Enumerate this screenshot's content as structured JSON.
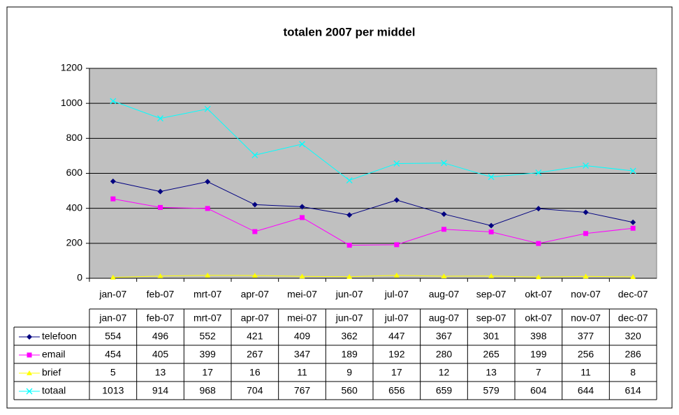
{
  "chart_data": {
    "type": "line",
    "title": "totalen 2007 per middel",
    "categories": [
      "jan-07",
      "feb-07",
      "mrt-07",
      "apr-07",
      "mei-07",
      "jun-07",
      "jul-07",
      "aug-07",
      "sep-07",
      "okt-07",
      "nov-07",
      "dec-07"
    ],
    "series": [
      {
        "name": "telefoon",
        "color": "#000080",
        "marker": "diamond",
        "values": [
          554,
          496,
          552,
          421,
          409,
          362,
          447,
          367,
          301,
          398,
          377,
          320
        ]
      },
      {
        "name": "email",
        "color": "#ff00ff",
        "marker": "square",
        "values": [
          454,
          405,
          399,
          267,
          347,
          189,
          192,
          280,
          265,
          199,
          256,
          286
        ]
      },
      {
        "name": "brief",
        "color": "#ffff00",
        "marker": "triangle",
        "values": [
          5,
          13,
          17,
          16,
          11,
          9,
          17,
          12,
          13,
          7,
          11,
          8
        ]
      },
      {
        "name": "totaal",
        "color": "#00ffff",
        "marker": "x",
        "values": [
          1013,
          914,
          968,
          704,
          767,
          560,
          656,
          659,
          579,
          604,
          644,
          614
        ]
      }
    ],
    "ylim": [
      0,
      1200
    ],
    "yticks": [
      0,
      200,
      400,
      600,
      800,
      1000,
      1200
    ],
    "grid": true,
    "plot_background": "#c0c0c0"
  }
}
